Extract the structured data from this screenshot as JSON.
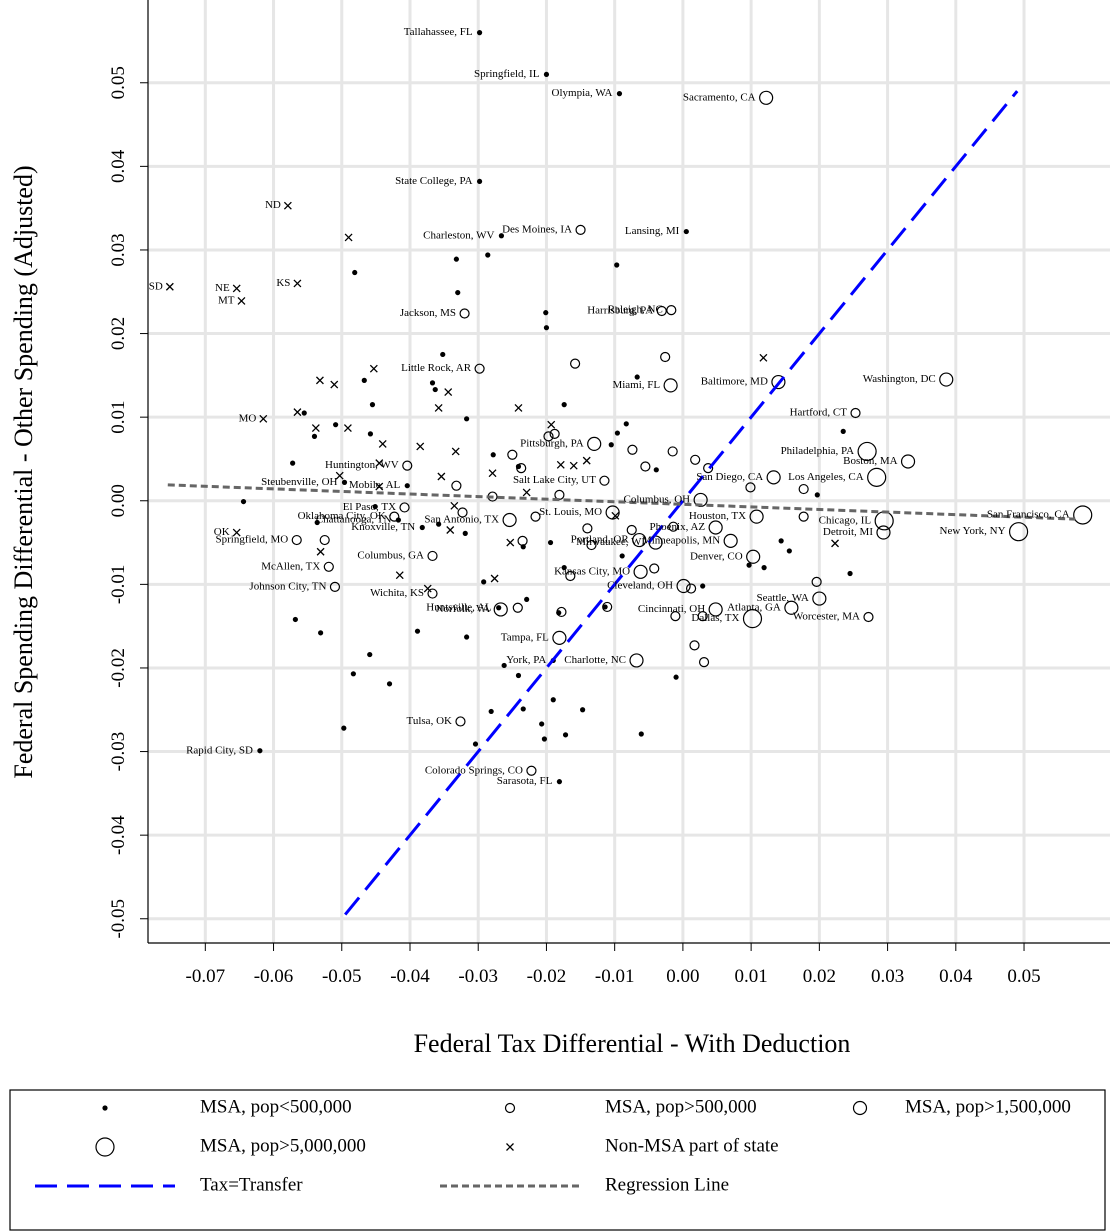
{
  "chart_data": {
    "type": "scatter",
    "xlabel": "Federal Tax Differential - With Deduction",
    "ylabel": "Federal Spending Differential - Other Spending (Adjusted)",
    "xlim": [
      -0.0784,
      0.0626
    ],
    "ylim": [
      -0.0529,
      0.0599
    ],
    "xticks": [
      -0.07,
      -0.06,
      -0.05,
      -0.04,
      -0.03,
      -0.02,
      -0.01,
      {
        "value": 0,
        "label": "0.00"
      },
      0.01,
      0.02,
      0.03,
      0.04,
      0.05
    ],
    "yticks": [
      -0.05,
      -0.04,
      -0.03,
      -0.02,
      -0.01,
      {
        "value": 0,
        "label": "0.00"
      },
      0.01,
      0.02,
      0.03,
      0.04,
      0.05
    ],
    "grid": true,
    "series": [
      {
        "name": "MSA, pop<500,000",
        "marker": "dot",
        "color": "#000000",
        "x": [
          -0.0298,
          -0.02,
          -0.0093,
          -0.0298,
          -0.0266,
          0.0005,
          -0.062,
          -0.0181,
          -0.0496,
          -0.0417,
          -0.0382,
          -0.019,
          -0.027,
          -0.0404,
          -0.0481,
          -0.0332,
          -0.033,
          -0.0286,
          -0.0201,
          -0.02,
          -0.0097,
          -0.0352,
          -0.0467,
          -0.0367,
          -0.0455,
          -0.0509,
          -0.0555,
          -0.054,
          -0.0572,
          -0.0458,
          -0.0317,
          -0.0278,
          -0.0241,
          -0.0174,
          -0.0096,
          -0.0067,
          -0.0083,
          -0.0039,
          -0.0644,
          -0.0536,
          -0.0451,
          -0.0358,
          -0.0319,
          -0.0234,
          -0.0194,
          -0.0174,
          -0.0089,
          0.0029,
          0.0097,
          0.0119,
          0.0245,
          0.0197,
          0.0235,
          -0.0568,
          -0.0531,
          -0.0483,
          -0.0459,
          -0.043,
          -0.0389,
          -0.0317,
          -0.0262,
          -0.0241,
          -0.0281,
          -0.0234,
          -0.019,
          -0.0147,
          -0.0207,
          -0.0203,
          -0.0172,
          -0.0304,
          -0.0497,
          -0.0061,
          -0.001,
          -0.0114,
          -0.0229,
          -0.0292,
          0.0144,
          0.0156,
          -0.0182,
          -0.0363,
          -0.0105
        ],
        "y": [
          0.056,
          0.051,
          0.0487,
          0.0382,
          0.0317,
          0.0322,
          -0.0299,
          -0.0336,
          0.0022,
          -0.0023,
          -0.0032,
          -0.0191,
          -0.0128,
          0.0018,
          0.0273,
          0.0289,
          0.0249,
          0.0294,
          0.0225,
          0.0207,
          0.0282,
          0.0175,
          0.0144,
          0.0141,
          0.0115,
          0.0091,
          0.0105,
          0.0077,
          0.0045,
          0.008,
          0.0098,
          0.0055,
          0.0041,
          0.0115,
          0.0081,
          0.0148,
          0.0092,
          0.0037,
          -0.0001,
          -0.0026,
          -0.0007,
          -0.0028,
          -0.0039,
          -0.0055,
          -0.005,
          -0.008,
          -0.0066,
          -0.0102,
          -0.0077,
          -0.008,
          -0.0087,
          0.0007,
          0.0083,
          -0.0142,
          -0.0158,
          -0.0207,
          -0.0184,
          -0.0219,
          -0.0156,
          -0.0163,
          -0.0197,
          -0.0209,
          -0.0252,
          -0.0249,
          -0.0238,
          -0.025,
          -0.0267,
          -0.0285,
          -0.028,
          -0.0291,
          -0.0272,
          -0.0279,
          -0.0211,
          -0.0127,
          -0.0118,
          -0.0097,
          -0.0048,
          -0.006,
          -0.0134,
          0.0133,
          0.0067
        ],
        "labels": [
          "Tallahassee, FL",
          "Springfield, IL",
          "Olympia, WA",
          "State College, PA",
          "Charleston, WV",
          "Lansing, MI",
          "Rapid City, SD",
          "Sarasota, FL",
          "Steubenville, OH",
          "Chattanooga, TN",
          "Knoxville, TN",
          "York, PA",
          "Huntsville, AL",
          "Mobile, AL",
          null,
          null,
          null,
          null,
          null,
          null,
          null,
          null,
          null,
          null,
          null,
          null,
          null,
          null,
          null,
          null,
          null,
          null,
          null,
          null,
          null,
          null,
          null,
          null,
          null,
          null,
          null,
          null,
          null,
          null,
          null,
          null,
          null,
          null,
          null,
          null,
          null,
          null,
          null,
          null,
          null,
          null,
          null,
          null,
          null,
          null,
          null,
          null,
          null,
          null,
          null,
          null,
          null,
          null,
          null,
          null,
          null,
          null,
          null,
          null,
          null,
          null,
          null,
          null,
          null,
          null,
          null
        ]
      },
      {
        "name": "MSA, pop>500,000",
        "marker": "circle-s",
        "color": "#000000",
        "x": [
          -0.015,
          -0.032,
          -0.0031,
          -0.0017,
          -0.0298,
          -0.0404,
          -0.0408,
          -0.0423,
          -0.0367,
          -0.0566,
          -0.0519,
          -0.051,
          -0.0367,
          -0.0326,
          -0.0222,
          0.0253,
          0.0272,
          -0.0115,
          -0.0158,
          -0.0026,
          -0.0015,
          -0.0074,
          0.0018,
          -0.0055,
          -0.0197,
          -0.0188,
          -0.025,
          -0.0237,
          -0.0332,
          -0.0279,
          -0.0181,
          -0.0216,
          -0.0235,
          -0.014,
          -0.0134,
          -0.0075,
          -0.0014,
          -0.0042,
          0.0012,
          0.0029,
          -0.0011,
          -0.0111,
          -0.0242,
          -0.0165,
          -0.0178,
          0.0017,
          0.0031,
          0.0177,
          0.0177,
          0.0196,
          0.0099,
          0.0037,
          -0.0323,
          -0.0525
        ],
        "y": [
          0.0324,
          0.0224,
          0.0227,
          0.0228,
          0.0158,
          0.0042,
          -0.0008,
          -0.0019,
          -0.0066,
          -0.0047,
          -0.0079,
          -0.0103,
          -0.0111,
          -0.0264,
          -0.0323,
          0.0105,
          -0.0139,
          0.0024,
          0.0164,
          0.0172,
          0.0059,
          0.0061,
          0.0049,
          0.0041,
          0.0077,
          0.008,
          0.0055,
          0.0039,
          0.0018,
          0.0005,
          0.0007,
          -0.0019,
          -0.0048,
          -0.0033,
          -0.0053,
          -0.0035,
          -0.0031,
          -0.0081,
          -0.0105,
          -0.0138,
          -0.0138,
          -0.0127,
          -0.0128,
          -0.009,
          -0.0133,
          -0.0173,
          -0.0193,
          -0.0019,
          0.0014,
          -0.0097,
          0.0016,
          0.0039,
          -0.0014,
          -0.0047
        ],
        "labels": [
          "Des Moines, IA",
          "Jackson, MS",
          "Harrisburg, PA",
          "Raleigh, NC",
          "Little Rock, AR",
          "Huntington, WV",
          "El Paso, TX",
          "Oklahoma City, OK",
          "Columbus, GA",
          "Springfield, MO",
          "McAllen, TX",
          "Johnson City, TN",
          "Wichita, KS",
          "Tulsa, OK",
          "Colorado Springs, CO",
          "Hartford, CT",
          "Worcester, MA",
          "Salt Lake City, UT",
          null,
          null,
          null,
          null,
          null,
          null,
          null,
          null,
          null,
          null,
          null,
          null,
          null,
          null,
          null,
          null,
          null,
          null,
          null,
          null,
          null,
          null,
          null,
          null,
          null,
          null,
          null,
          null,
          null,
          null,
          null,
          null,
          null,
          null
        ]
      },
      {
        "name": "MSA, pop>1,500,000",
        "marker": "circle-m",
        "color": "#000000",
        "x": [
          0.0122,
          -0.0018,
          0.014,
          0.0386,
          -0.013,
          0.033,
          0.0133,
          0.0294,
          -0.0254,
          -0.0103,
          -0.0062,
          -0.0181,
          -0.0267,
          -0.0068,
          0.0026,
          0.0108,
          0.0048,
          -0.0064,
          -0.004,
          0.007,
          0.0103,
          0.0001,
          0.0048,
          0.0159,
          0.02
        ],
        "y": [
          0.0482,
          0.0138,
          0.0142,
          0.0145,
          0.0068,
          0.0047,
          0.0028,
          -0.0038,
          -0.0023,
          -0.0014,
          -0.0085,
          -0.0164,
          -0.013,
          -0.0191,
          0.0001,
          -0.0019,
          -0.0032,
          -0.0047,
          -0.005,
          -0.0048,
          -0.0067,
          -0.0102,
          -0.013,
          -0.0128,
          -0.0117
        ],
        "labels": [
          "Sacramento, CA",
          "Miami, FL",
          "Baltimore, MD",
          "Washington, DC",
          "Pittsburgh, PA",
          "Boston, MA",
          "San Diego, CA",
          "Detroit, MI",
          "San Antonio, TX",
          "St. Louis, MO",
          "Kansas City, MO",
          "Tampa, FL",
          "Norfolk, VA",
          "Charlotte, NC",
          "Columbus, OH",
          "Houston, TX",
          "Phoenix, AZ",
          "Portland, OR",
          "Milwaukee, WI",
          "Minneapolis, MN",
          "Denver, CO",
          "Cleveland, OH",
          "Cincinnati, OH",
          "Atlanta, GA",
          "Seattle, WA"
        ]
      },
      {
        "name": "MSA, pop>5,000,000",
        "marker": "circle-l",
        "color": "#000000",
        "x": [
          0.027,
          0.0284,
          0.0295,
          0.0492,
          0.0102,
          0.0586
        ],
        "y": [
          0.0059,
          0.0028,
          -0.0024,
          -0.0037,
          -0.0141,
          -0.0017
        ],
        "labels": [
          "Philadelphia, PA",
          "Los Angeles, CA",
          "Chicago, IL",
          "New York, NY",
          "Dallas, TX",
          "San Francisco, CA"
        ]
      },
      {
        "name": "Non-MSA part of state",
        "marker": "x",
        "color": "#000000",
        "x": [
          -0.0579,
          -0.0752,
          -0.0654,
          -0.0647,
          -0.0565,
          -0.0615,
          -0.0654,
          -0.049,
          -0.0453,
          -0.0532,
          -0.0511,
          -0.0565,
          -0.0538,
          -0.0491,
          -0.044,
          -0.0385,
          -0.0358,
          -0.0344,
          -0.0241,
          -0.0193,
          -0.0279,
          -0.0333,
          -0.0354,
          -0.0179,
          -0.016,
          -0.0141,
          -0.0229,
          -0.0445,
          -0.0445,
          -0.0335,
          -0.0531,
          -0.0415,
          -0.0374,
          -0.0276,
          -0.0253,
          -0.0099,
          0.0118,
          0.0223,
          -0.0341,
          -0.0503
        ],
        "y": [
          0.0353,
          0.0256,
          0.0254,
          0.0239,
          0.026,
          0.0098,
          -0.0038,
          0.0315,
          0.0158,
          0.0144,
          0.0139,
          0.0106,
          0.0087,
          0.0087,
          0.0068,
          0.0065,
          0.0111,
          0.013,
          0.0111,
          0.0091,
          0.0033,
          0.0059,
          0.0029,
          0.0043,
          0.0042,
          0.0048,
          0.001,
          0.0045,
          0.0017,
          -0.0006,
          -0.0061,
          -0.0089,
          -0.0105,
          -0.0093,
          -0.005,
          -0.0018,
          0.0171,
          -0.0051,
          -0.0035,
          0.003
        ],
        "labels": [
          "ND",
          "SD",
          "NE",
          "MT",
          "KS",
          "MO",
          "OK",
          null,
          null,
          null,
          null,
          null,
          null,
          null,
          null,
          null,
          null,
          null,
          null,
          null,
          null,
          null,
          null,
          null,
          null,
          null,
          null,
          null,
          null,
          null,
          null,
          null,
          null,
          null,
          null,
          null,
          null,
          null,
          null,
          null
        ]
      },
      {
        "name": "Tax=Transfer",
        "marker": "long-dash",
        "color": "#0000ff",
        "x": [
          -0.0495,
          0.049
        ],
        "y": [
          -0.0495,
          0.049
        ]
      },
      {
        "name": "Regression Line",
        "marker": "short-dash",
        "color": "#666666",
        "x": [
          -0.0755,
          0.0575
        ],
        "y": [
          0.0019,
          -0.0022
        ]
      }
    ]
  }
}
